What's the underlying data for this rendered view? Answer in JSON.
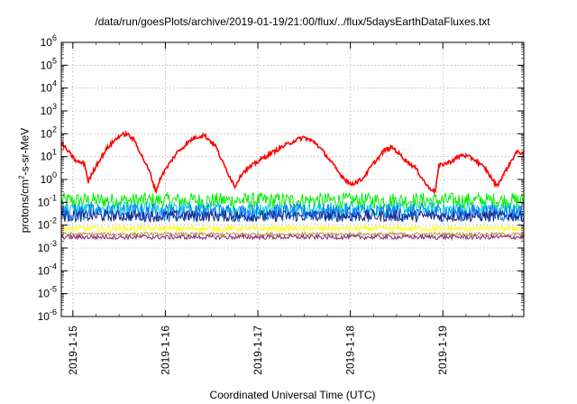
{
  "chart_data": {
    "type": "line",
    "title": "/data/run/goesPlots/archive/2019-01-19/21:00/flux/../flux/5daysEarthDataFluxes.txt",
    "xlabel": "Coordinated Universal Time (UTC)",
    "ylabel": {
      "prefix": "protons/cm",
      "sup": "2",
      "suffix": "-s-sr-MeV"
    },
    "y_scale": "log",
    "ylim_exponents": [
      -6,
      6
    ],
    "y_tick_base": "10",
    "y_tick_exponents": [
      "6",
      "5",
      "4",
      "3",
      "2",
      "1",
      "0",
      "-1",
      "-2",
      "-3",
      "-4",
      "-5",
      "-6"
    ],
    "xlim": [
      "2019-01-14T21:00",
      "2019-01-19T21:00"
    ],
    "x_ticks": [
      "2019-1-15",
      "2019-1-16",
      "2019-1-17",
      "2019-1-18",
      "2019-1-19"
    ],
    "grid": true,
    "series": [
      {
        "color": "#ff0000",
        "points": [
          [
            "2019-01-14T21:00",
            40
          ],
          [
            "2019-01-14T23:00",
            15
          ],
          [
            "2019-01-15T01:00",
            6
          ],
          [
            "2019-01-15T03:00",
            5
          ],
          [
            "2019-01-15T04:00",
            0.8
          ],
          [
            "2019-01-15T06:00",
            4
          ],
          [
            "2019-01-15T09:00",
            25
          ],
          [
            "2019-01-15T12:00",
            80
          ],
          [
            "2019-01-15T14:00",
            100
          ],
          [
            "2019-01-15T16:00",
            50
          ],
          [
            "2019-01-15T18:00",
            10
          ],
          [
            "2019-01-15T20:00",
            2
          ],
          [
            "2019-01-15T21:30",
            0.3
          ],
          [
            "2019-01-15T23:00",
            1.5
          ],
          [
            "2019-01-16T03:00",
            15
          ],
          [
            "2019-01-16T07:00",
            60
          ],
          [
            "2019-01-16T10:00",
            90
          ],
          [
            "2019-01-16T13:00",
            30
          ],
          [
            "2019-01-16T15:00",
            5
          ],
          [
            "2019-01-16T18:00",
            0.5
          ],
          [
            "2019-01-16T20:00",
            2
          ],
          [
            "2019-01-17T01:00",
            8
          ],
          [
            "2019-01-17T06:00",
            25
          ],
          [
            "2019-01-17T10:00",
            55
          ],
          [
            "2019-01-17T12:00",
            70
          ],
          [
            "2019-01-17T15:00",
            40
          ],
          [
            "2019-01-17T18:00",
            10
          ],
          [
            "2019-01-17T21:00",
            2
          ],
          [
            "2019-01-18T00:00",
            0.6
          ],
          [
            "2019-01-18T03:00",
            1
          ],
          [
            "2019-01-18T06:00",
            5
          ],
          [
            "2019-01-18T09:00",
            20
          ],
          [
            "2019-01-18T11:00",
            25
          ],
          [
            "2019-01-18T14:00",
            8
          ],
          [
            "2019-01-18T17:00",
            3
          ],
          [
            "2019-01-18T20:00",
            0.5
          ],
          [
            "2019-01-18T22:00",
            0.3
          ],
          [
            "2019-01-18T23:00",
            4
          ],
          [
            "2019-01-19T02:00",
            6
          ],
          [
            "2019-01-19T05:00",
            12
          ],
          [
            "2019-01-19T08:00",
            8
          ],
          [
            "2019-01-19T11:00",
            3
          ],
          [
            "2019-01-19T14:00",
            0.5
          ],
          [
            "2019-01-19T16:00",
            2
          ],
          [
            "2019-01-19T19:00",
            15
          ],
          [
            "2019-01-19T21:00",
            15
          ]
        ]
      },
      {
        "color": "#00ee00",
        "level": 0.12,
        "noise": 0.35
      },
      {
        "color": "#00ccdd",
        "level": 0.05,
        "noise": 0.3
      },
      {
        "color": "#0077ff",
        "level": 0.035,
        "noise": 0.4
      },
      {
        "color": "#1a237e",
        "level": 0.025,
        "noise": 0.25
      },
      {
        "color": "#ffff00",
        "level": 0.007,
        "noise": 0.12
      },
      {
        "color": "#b5954d",
        "level": 0.004,
        "noise": 0.08
      },
      {
        "color": "#8b2a6c",
        "level": 0.003,
        "noise": 0.1
      }
    ]
  }
}
